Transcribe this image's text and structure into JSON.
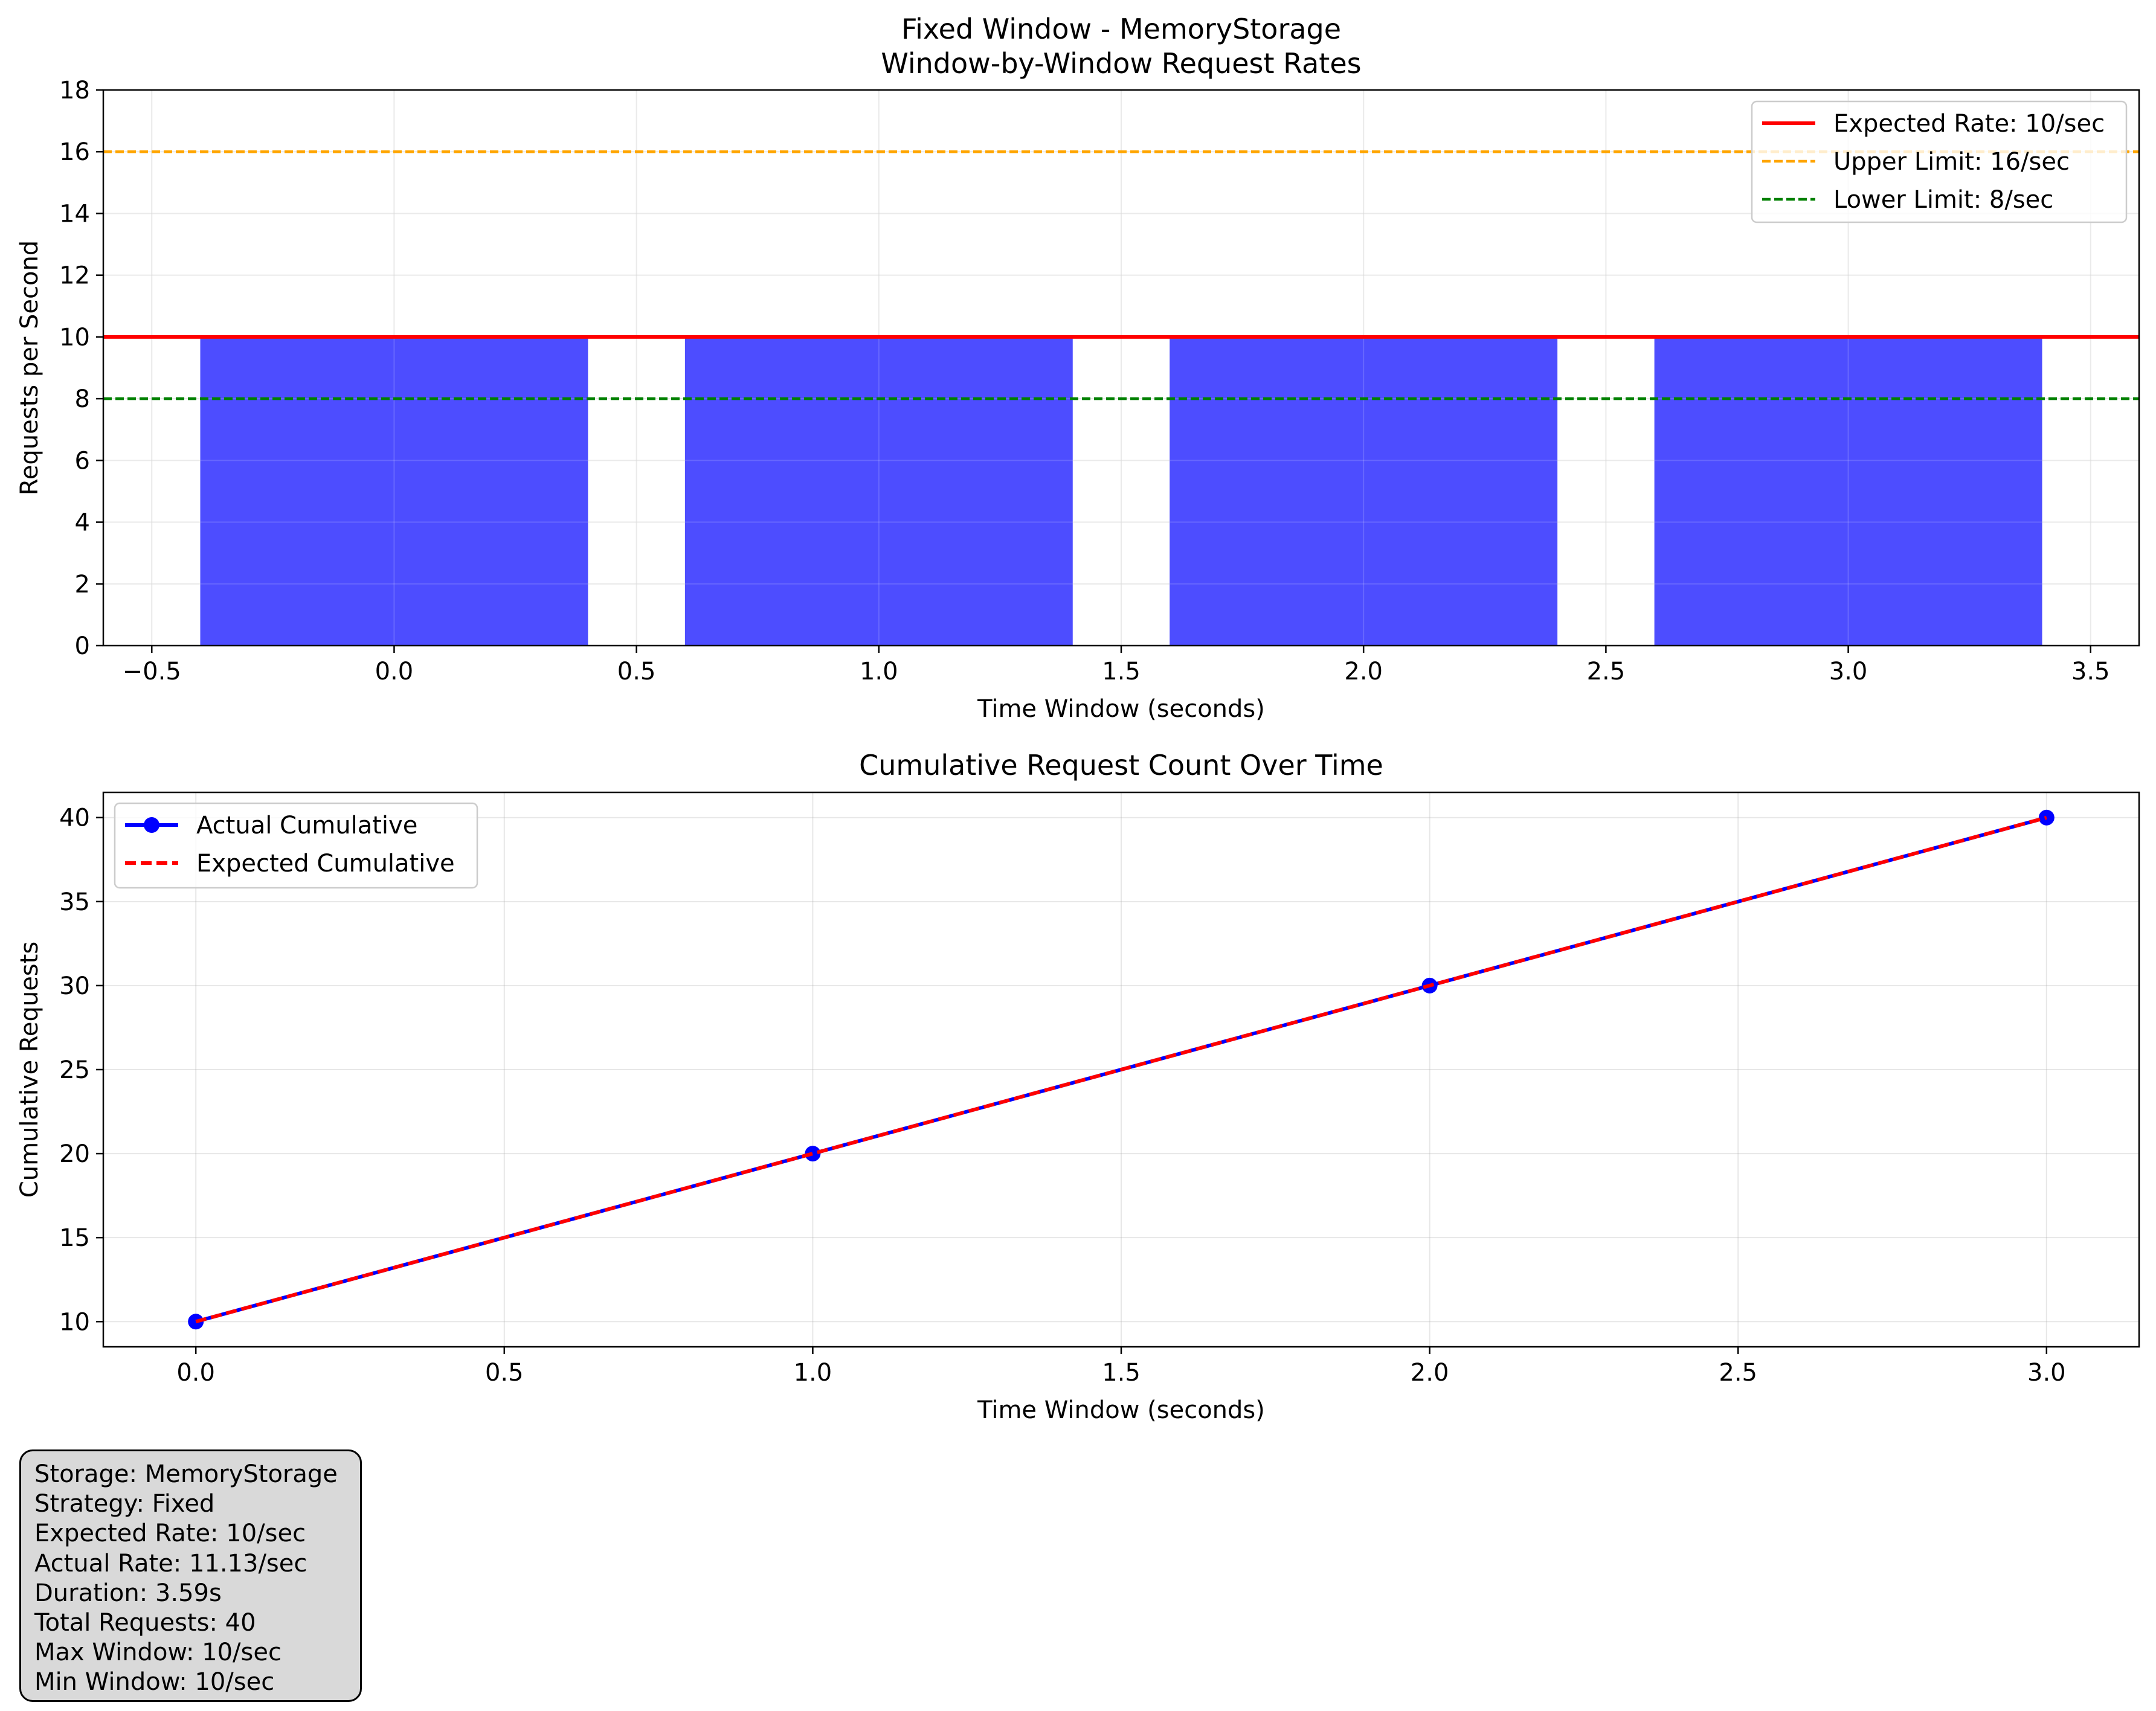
{
  "figure": {
    "suptitle_line1": "Fixed Window - MemoryStorage",
    "suptitle_line2": "Window-by-Window Request Rates"
  },
  "chart_data": [
    {
      "type": "bar",
      "title": "Fixed Window - MemoryStorage\nWindow-by-Window Request Rates",
      "xlabel": "Time Window (seconds)",
      "ylabel": "Requests per Second",
      "x": [
        0,
        1,
        2,
        3
      ],
      "values": [
        10,
        10,
        10,
        10
      ],
      "bar_width": 0.8,
      "bar_color": "#4d4dff",
      "xlim": [
        -0.6,
        3.6
      ],
      "ylim": [
        0,
        18
      ],
      "xticks": [
        -0.5,
        0.0,
        0.5,
        1.0,
        1.5,
        2.0,
        2.5,
        3.0,
        3.5
      ],
      "xtick_labels": [
        "−0.5",
        "0.0",
        "0.5",
        "1.0",
        "1.5",
        "2.0",
        "2.5",
        "3.0",
        "3.5"
      ],
      "yticks": [
        0,
        2,
        4,
        6,
        8,
        10,
        12,
        14,
        16,
        18
      ],
      "ytick_labels": [
        "0",
        "2",
        "4",
        "6",
        "8",
        "10",
        "12",
        "14",
        "16",
        "18"
      ],
      "grid": true,
      "legend_position": "top-right",
      "reference_lines": [
        {
          "name": "Expected Rate: 10/sec",
          "y": 10,
          "color": "#ff0000",
          "style": "solid"
        },
        {
          "name": "Upper Limit: 16/sec",
          "y": 16,
          "color": "#ffa500",
          "style": "dashed"
        },
        {
          "name": "Lower Limit: 8/sec",
          "y": 8,
          "color": "#008000",
          "style": "dashed"
        }
      ]
    },
    {
      "type": "line",
      "title": "Cumulative Request Count Over Time",
      "xlabel": "Time Window (seconds)",
      "ylabel": "Cumulative Requests",
      "x": [
        0,
        1,
        2,
        3
      ],
      "series": [
        {
          "name": "Actual Cumulative",
          "values": [
            10,
            20,
            30,
            40
          ],
          "color": "#0000ff",
          "style": "solid",
          "markers": true
        },
        {
          "name": "Expected Cumulative",
          "values": [
            10,
            20,
            30,
            40
          ],
          "color": "#ff0000",
          "style": "dashed",
          "markers": false
        }
      ],
      "xlim": [
        -0.15,
        3.15
      ],
      "ylim": [
        8.5,
        41.5
      ],
      "xticks": [
        0.0,
        0.5,
        1.0,
        1.5,
        2.0,
        2.5,
        3.0
      ],
      "xtick_labels": [
        "0.0",
        "0.5",
        "1.0",
        "1.5",
        "2.0",
        "2.5",
        "3.0"
      ],
      "yticks": [
        10,
        15,
        20,
        25,
        30,
        35,
        40
      ],
      "ytick_labels": [
        "10",
        "15",
        "20",
        "25",
        "30",
        "35",
        "40"
      ],
      "grid": true,
      "legend_position": "top-left"
    }
  ],
  "stats": {
    "lines": [
      "Storage: MemoryStorage",
      "Strategy: Fixed",
      "Expected Rate: 10/sec",
      "Actual Rate: 11.13/sec",
      "Duration: 3.59s",
      "Total Requests: 40",
      "Max Window: 10/sec",
      "Min Window: 10/sec"
    ]
  }
}
